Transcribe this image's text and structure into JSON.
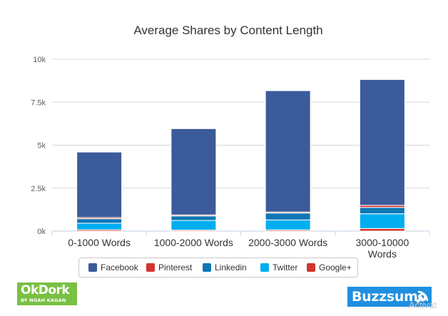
{
  "chart_data": {
    "type": "bar",
    "stacked": true,
    "title": "Average Shares by Content Length",
    "xlabel": "",
    "ylabel": "",
    "categories": [
      [
        "0-1000 Words"
      ],
      [
        "1000-2000 Words"
      ],
      [
        "2000-3000 Words"
      ],
      [
        "3000-10000",
        "Words"
      ]
    ],
    "yticks": [
      "0k",
      "2.5k",
      "5k",
      "7.5k",
      "10k"
    ],
    "ytick_values": [
      0,
      2500,
      5000,
      7500,
      10000
    ],
    "ylim": [
      0,
      10000
    ],
    "grid": true,
    "legend": "bottom",
    "series": [
      {
        "name": "Google+",
        "color": "#d0352c",
        "values": [
          80,
          60,
          70,
          150
        ]
      },
      {
        "name": "Twitter",
        "color": "#00aeef",
        "values": [
          380,
          560,
          580,
          860
        ]
      },
      {
        "name": "Linkedin",
        "color": "#0e77b5",
        "values": [
          260,
          260,
          400,
          370
        ]
      },
      {
        "name": "Pinterest",
        "color": "#d0352c",
        "values": [
          70,
          60,
          60,
          120
        ]
      },
      {
        "name": "Facebook",
        "color": "#3b5b9b",
        "values": [
          3810,
          5020,
          7060,
          7320
        ]
      }
    ],
    "legend_order": [
      "Facebook",
      "Pinterest",
      "Linkedin",
      "Twitter",
      "Google+"
    ]
  },
  "logos": {
    "okdork": {
      "name": "OkDork",
      "tagline": "BY NOAH KAGAN"
    },
    "buzzsumo": {
      "name": "Buzzsumo"
    }
  },
  "watermark": "Activat"
}
